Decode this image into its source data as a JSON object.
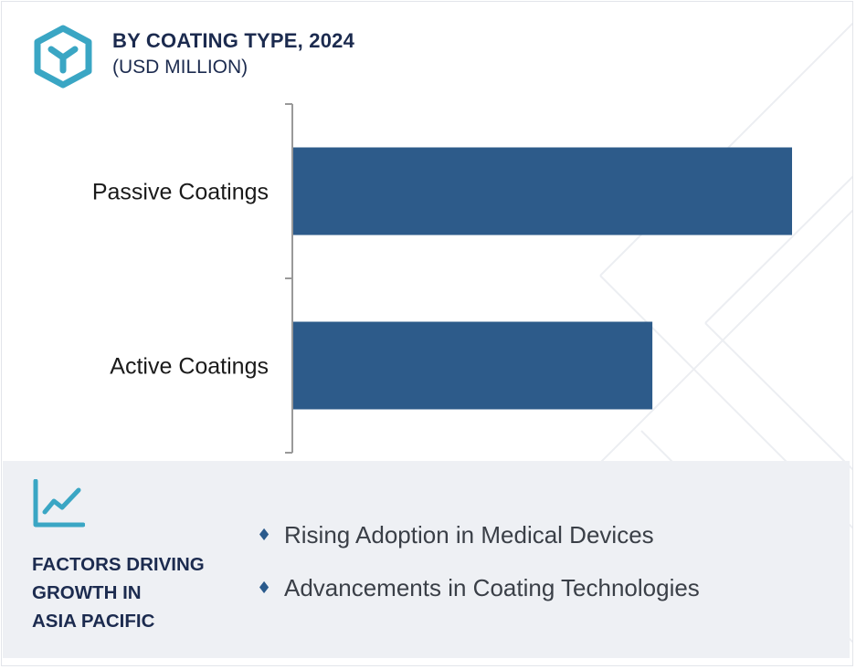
{
  "header": {
    "title": "BY COATING TYPE, 2024",
    "subtitle": "(USD MILLION)",
    "logo_icon": "hexagon-y-logo-icon"
  },
  "chart_data": {
    "type": "bar",
    "orientation": "horizontal",
    "title": "BY COATING TYPE, 2024",
    "subtitle": "(USD MILLION)",
    "categories": [
      "Passive Coatings",
      "Active Coatings"
    ],
    "values": [
      100,
      72
    ],
    "xlim": [
      0,
      100
    ],
    "grid": false,
    "legend": "none",
    "bar_color": "#2d5b8a",
    "axis_color": "#999999"
  },
  "factors": {
    "icon": "trend-line-chart-icon",
    "heading_lines": [
      "FACTORS DRIVING",
      "GROWTH IN",
      "ASIA PACIFIC"
    ],
    "bullet_icon": "diamond-bullet-icon",
    "items": [
      "Rising Adoption in Medical Devices",
      "Advancements in Coating Technologies"
    ]
  },
  "colors": {
    "accent": "#3aa6c4",
    "heading": "#1c2b4f",
    "bar": "#2d5b8a",
    "panel_bg": "#eef0f4"
  }
}
